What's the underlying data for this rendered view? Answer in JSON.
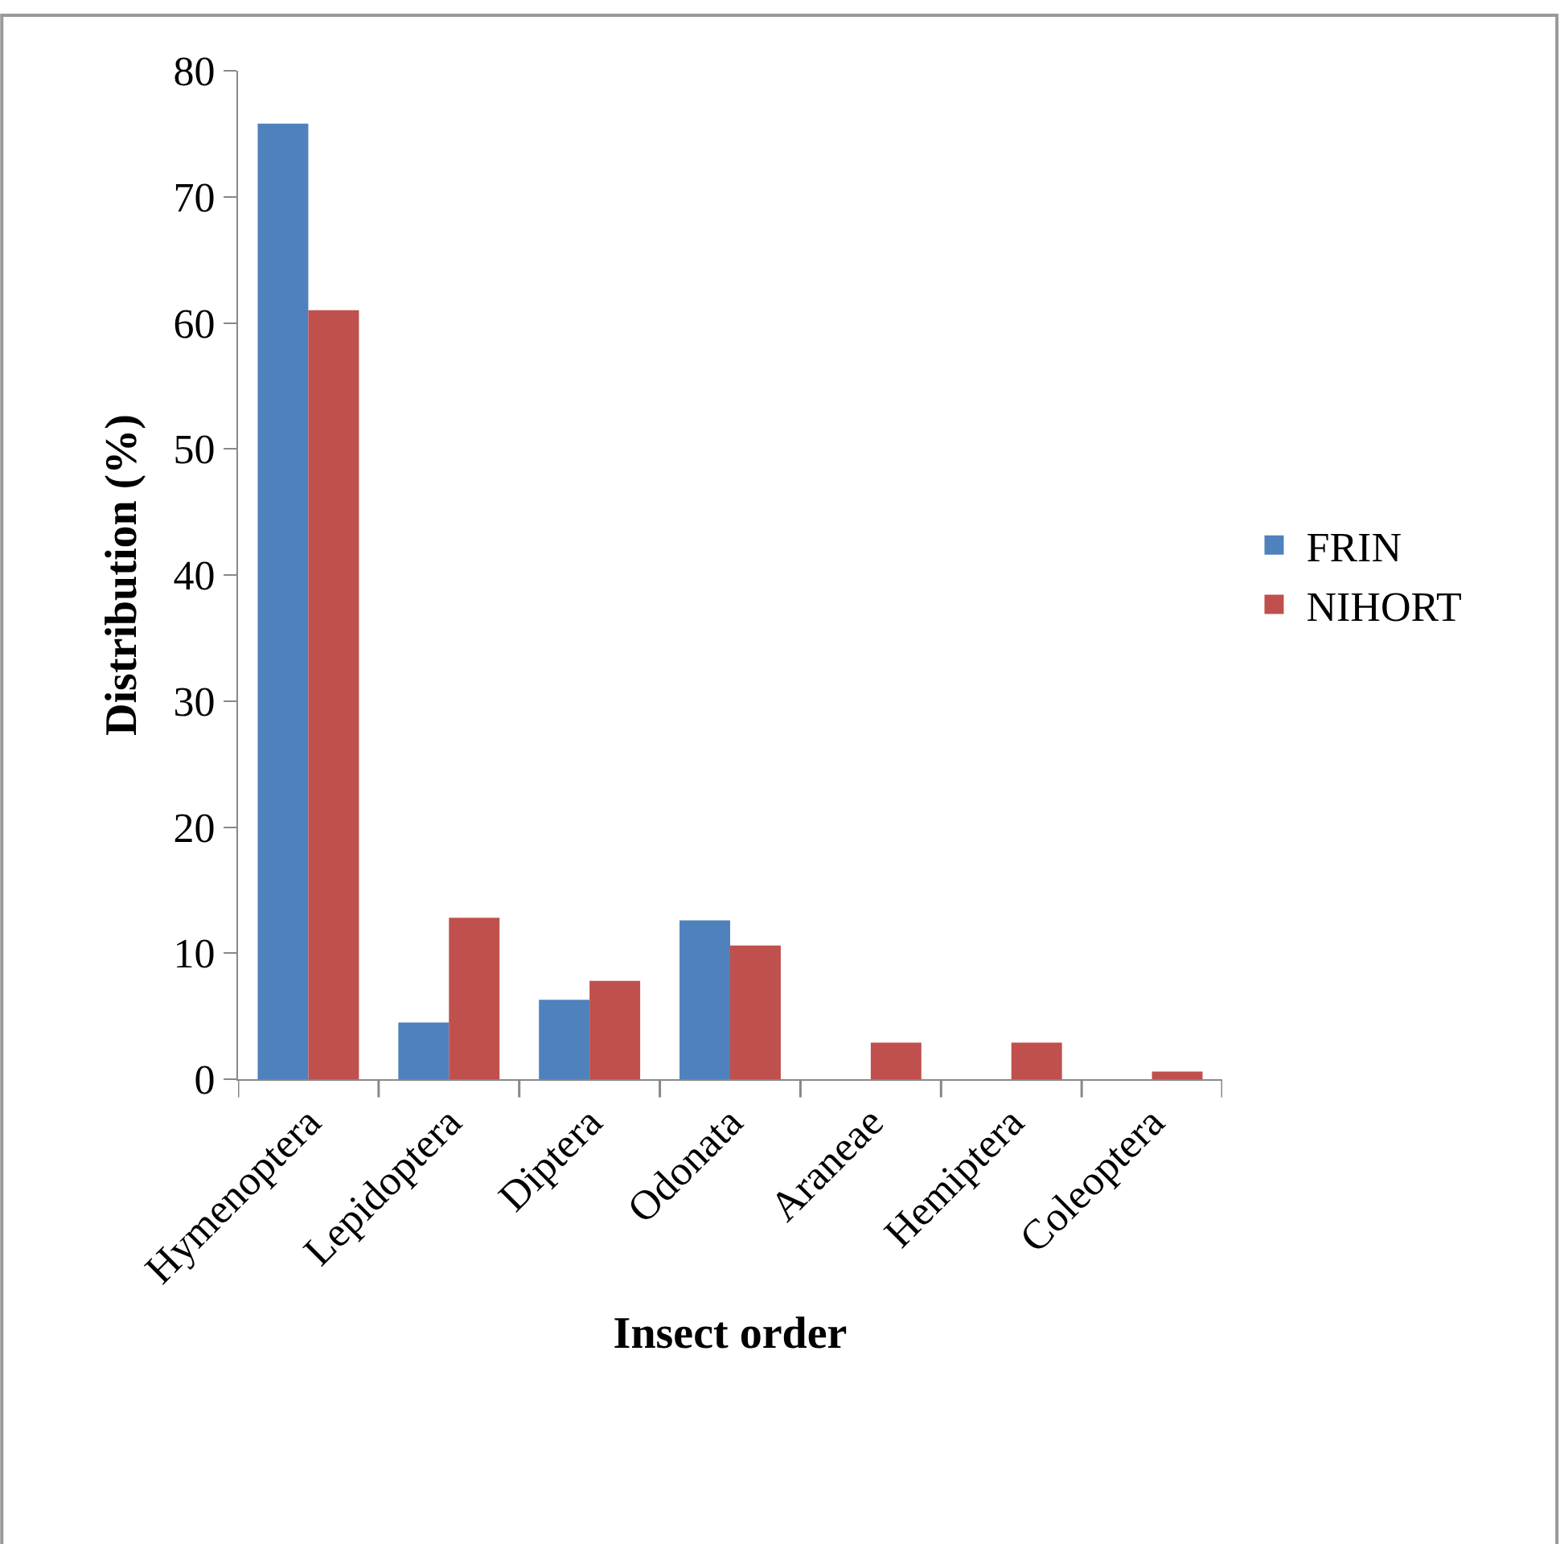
{
  "chart_data": {
    "type": "bar",
    "xlabel": "Insect order",
    "ylabel": "Distribution (%)",
    "categories": [
      "Hymenoptera",
      "Lepidoptera",
      "Diptera",
      "Odonata",
      "Araneae",
      "Hemiptera",
      "Coleoptera"
    ],
    "series": [
      {
        "name": "FRIN",
        "color": "#4f81bd",
        "values": [
          75.8,
          4.5,
          6.3,
          12.6,
          null,
          null,
          null
        ]
      },
      {
        "name": "NIHORT",
        "color": "#c0504d",
        "values": [
          61.0,
          12.8,
          7.8,
          10.6,
          2.9,
          2.9,
          0.6
        ]
      }
    ],
    "ylim": [
      0,
      80
    ],
    "yticks": [
      0,
      10,
      20,
      30,
      40,
      50,
      60,
      70,
      80
    ],
    "legend": "right"
  }
}
